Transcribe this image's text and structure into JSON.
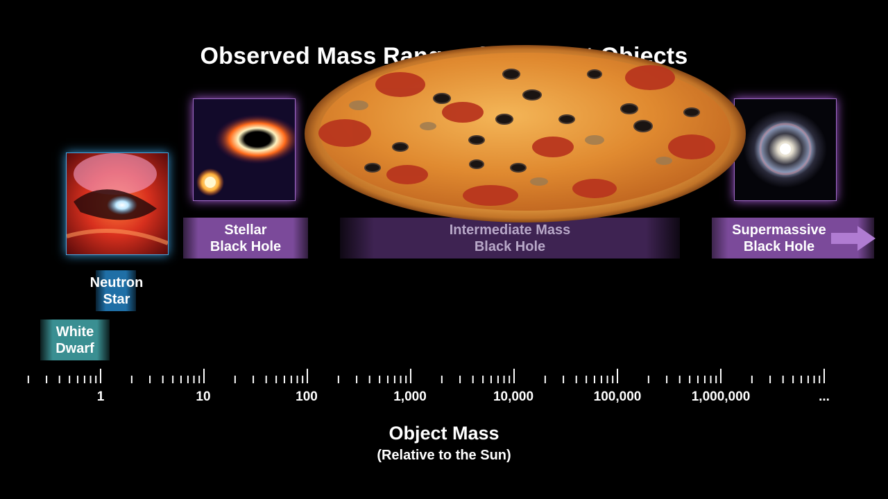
{
  "title": "Observed Mass Range of Compact Objects",
  "categories": [
    {
      "id": "white-dwarf",
      "line1": "White",
      "line2": "Dwarf",
      "color": "#3a8f92"
    },
    {
      "id": "neutron-star",
      "line1": "Neutron",
      "line2": "Star",
      "color": "#1f6fa6"
    },
    {
      "id": "stellar-bh",
      "line1": "Stellar",
      "line2": "Black Hole",
      "color": "#7b4a9a"
    },
    {
      "id": "intermediate-bh",
      "line1": "Intermediate Mass",
      "line2": "Black Hole",
      "color": "#4a2a62"
    },
    {
      "id": "supermassive-bh",
      "line1": "Supermassive",
      "line2": "Black Hole",
      "color": "#7b4a9a"
    }
  ],
  "axis": {
    "tick_labels": [
      "1",
      "10",
      "100",
      "1,000",
      "10,000",
      "100,000",
      "1,000,000",
      "..."
    ],
    "title": "Object Mass",
    "subtitle": "(Relative to the Sun)"
  },
  "colors": {
    "background": "#000000",
    "text": "#ffffff",
    "arrow": "#b07cd2"
  }
}
